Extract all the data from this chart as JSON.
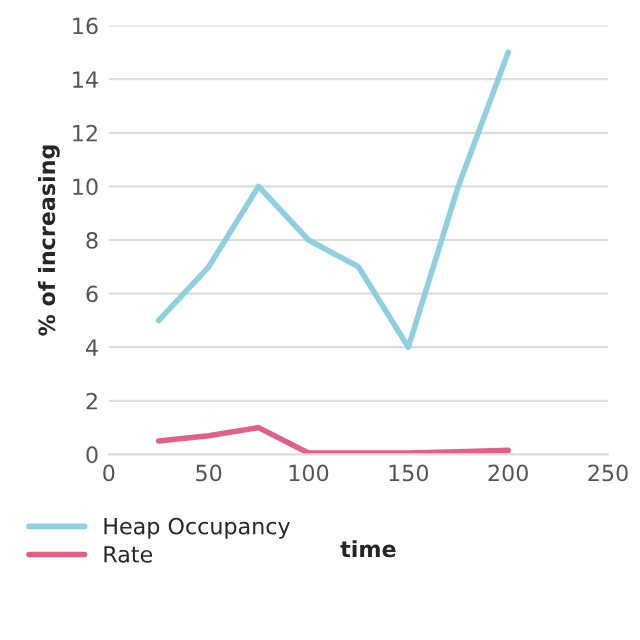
{
  "chart_data": {
    "type": "line",
    "xlabel": "time",
    "ylabel": "% of increasing",
    "x": [
      25,
      50,
      75,
      100,
      125,
      150,
      175,
      200
    ],
    "series": [
      {
        "name": "Heap Occupancy",
        "color": "#8ecfe0",
        "values": [
          5,
          7,
          10,
          8,
          7,
          4,
          10,
          15
        ]
      },
      {
        "name": "Rate",
        "color": "#e0608a",
        "values": [
          0.5,
          0.7,
          1.0,
          0.05,
          0.05,
          0.05,
          0.1,
          0.15
        ]
      }
    ],
    "xlim": [
      0,
      250
    ],
    "xticks": [
      0,
      50,
      100,
      150,
      200,
      250
    ],
    "ylim": [
      0,
      16
    ],
    "yticks": [
      0,
      2,
      4,
      6,
      8,
      10,
      12,
      14,
      16
    ],
    "grid": "y",
    "legend": "bottom left",
    "marker": "none",
    "line_style": "solid"
  }
}
